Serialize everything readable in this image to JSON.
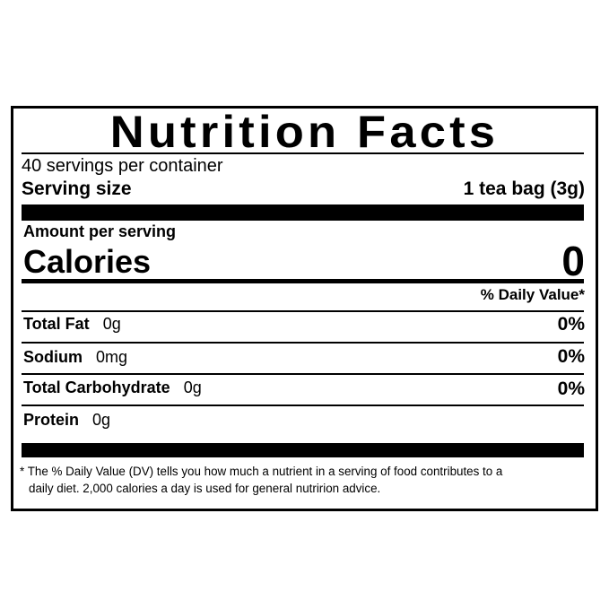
{
  "title": "Nutrition Facts",
  "servings_per_container": "40 servings per container",
  "serving_size": {
    "label": "Serving size",
    "value": "1 tea bag (3g)"
  },
  "amount_per_serving": "Amount per serving",
  "calories": {
    "label": "Calories",
    "value": "0"
  },
  "daily_value_header": "% Daily Value*",
  "nutrients": [
    {
      "label": "Total Fat",
      "amount": "0g",
      "dv": "0%"
    },
    {
      "label": "Sodium",
      "amount": "0mg",
      "dv": "0%"
    },
    {
      "label": "Total Carbohydrate",
      "amount": "0g",
      "dv": "0%"
    },
    {
      "label": "Protein",
      "amount": "0g",
      "dv": ""
    }
  ],
  "footnote": {
    "line1": "* The % Daily Value (DV) tells you how much a nutrient in a serving of food contributes to a",
    "line2": "daily diet. 2,000 calories a day is used for general nutririon advice."
  }
}
